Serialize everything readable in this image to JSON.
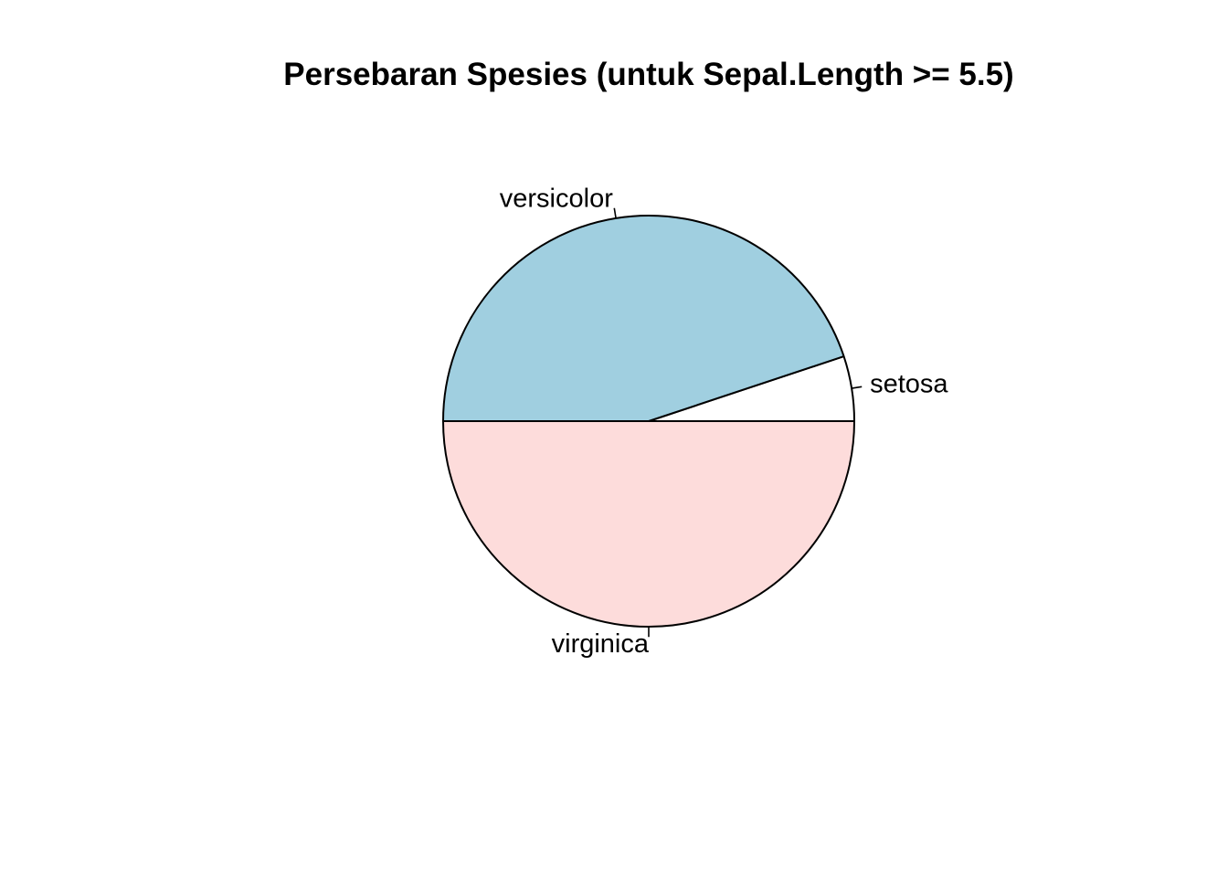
{
  "chart_data": {
    "type": "pie",
    "title": "Persebaran Spesies (untuk Sepal.Length >= 5.5)",
    "categories": [
      "setosa",
      "versicolor",
      "virginica"
    ],
    "values": [
      5,
      44,
      49
    ],
    "colors": [
      "#ffffff",
      "#a0cfe0",
      "#fddcdb"
    ],
    "start_angle_deg": 0,
    "direction": "counterclockwise",
    "outline_color": "#000000"
  }
}
